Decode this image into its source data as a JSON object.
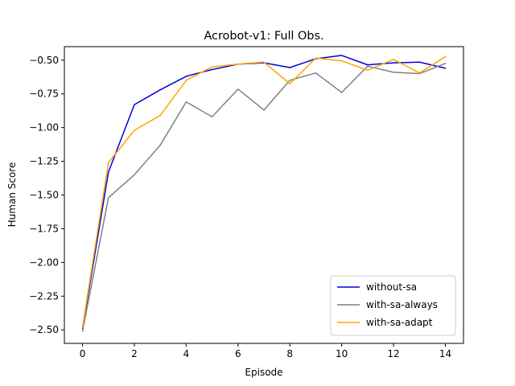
{
  "chart_data": {
    "type": "line",
    "title": "Acrobot-v1: Full Obs.",
    "xlabel": "Episode",
    "ylabel": "Human Score",
    "xlim": [
      -0.7,
      14.7
    ],
    "ylim": [
      -2.6,
      -0.4
    ],
    "xticks": [
      0,
      2,
      4,
      6,
      8,
      10,
      12,
      14
    ],
    "yticks": [
      -2.5,
      -2.25,
      -2.0,
      -1.75,
      -1.5,
      -1.25,
      -1.0,
      -0.75,
      -0.5
    ],
    "ytick_labels": [
      "−2.50",
      "−2.25",
      "−2.00",
      "−1.75",
      "−1.50",
      "−1.25",
      "−1.00",
      "−0.75",
      "−0.50"
    ],
    "grid": false,
    "legend_position": "lower-right",
    "x": [
      0,
      1,
      2,
      3,
      4,
      5,
      6,
      7,
      8,
      9,
      10,
      11,
      12,
      13,
      14
    ],
    "series": [
      {
        "name": "without-sa",
        "color": "#0000dd",
        "values": [
          -2.49,
          -1.33,
          -0.83,
          -0.72,
          -0.62,
          -0.57,
          -0.53,
          -0.52,
          -0.555,
          -0.49,
          -0.465,
          -0.535,
          -0.52,
          -0.515,
          -0.56
        ]
      },
      {
        "name": "with-sa-always",
        "color": "#808080",
        "values": [
          -2.51,
          -1.52,
          -1.35,
          -1.13,
          -0.81,
          -0.92,
          -0.715,
          -0.87,
          -0.65,
          -0.595,
          -0.74,
          -0.545,
          -0.59,
          -0.6,
          -0.525
        ]
      },
      {
        "name": "with-sa-adapt",
        "color": "#ffa500",
        "values": [
          -2.48,
          -1.26,
          -1.02,
          -0.91,
          -0.65,
          -0.55,
          -0.53,
          -0.515,
          -0.675,
          -0.485,
          -0.505,
          -0.575,
          -0.495,
          -0.595,
          -0.475
        ]
      }
    ]
  }
}
